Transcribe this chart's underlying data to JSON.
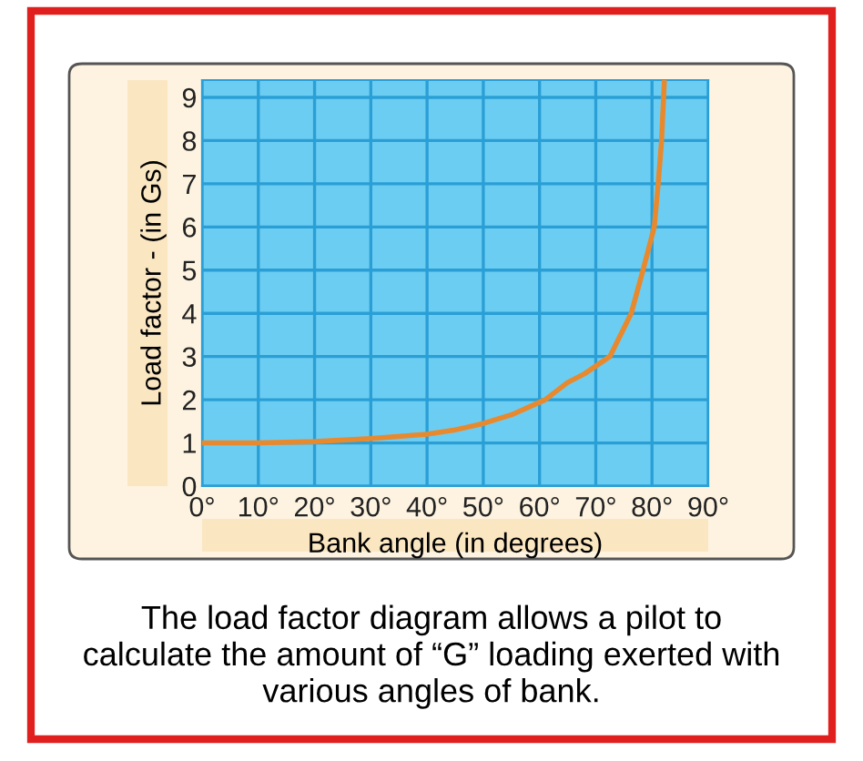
{
  "chart_data": {
    "type": "line",
    "xlabel": "Bank angle (in degrees)",
    "ylabel": "Load factor - (in Gs)",
    "x": [
      0,
      10,
      20,
      30,
      40,
      45,
      50,
      55,
      61,
      65,
      68,
      72.5,
      76.3,
      78.4,
      80.4,
      81.1,
      81.7,
      82.2
    ],
    "series": [
      {
        "color": "#e8892e",
        "values": [
          1,
          1,
          1.03,
          1.1,
          1.2,
          1.3,
          1.45,
          1.65,
          2,
          2.4,
          2.6,
          3,
          4,
          5,
          6,
          7,
          8,
          9.4
        ]
      }
    ],
    "xlim": [
      0,
      90
    ],
    "ylim": [
      0,
      9.4
    ],
    "xticks": [
      {
        "value": 0,
        "label": "0°"
      },
      {
        "value": 10,
        "label": "10°"
      },
      {
        "value": 20,
        "label": "20°"
      },
      {
        "value": 30,
        "label": "30°"
      },
      {
        "value": 40,
        "label": "40°"
      },
      {
        "value": 50,
        "label": "50°"
      },
      {
        "value": 60,
        "label": "60°"
      },
      {
        "value": 70,
        "label": "70°"
      },
      {
        "value": 80,
        "label": "80°"
      },
      {
        "value": 90,
        "label": "90°"
      }
    ],
    "yticks": [
      0,
      1,
      2,
      3,
      4,
      5,
      6,
      7,
      8,
      9
    ],
    "grid": true,
    "marker": "none",
    "line_style": "solid",
    "legend": false,
    "annotations": [
      "The load factor diagram allows a pilot to calculate the amount of “G” loading exerted with various angles of bank."
    ]
  }
}
